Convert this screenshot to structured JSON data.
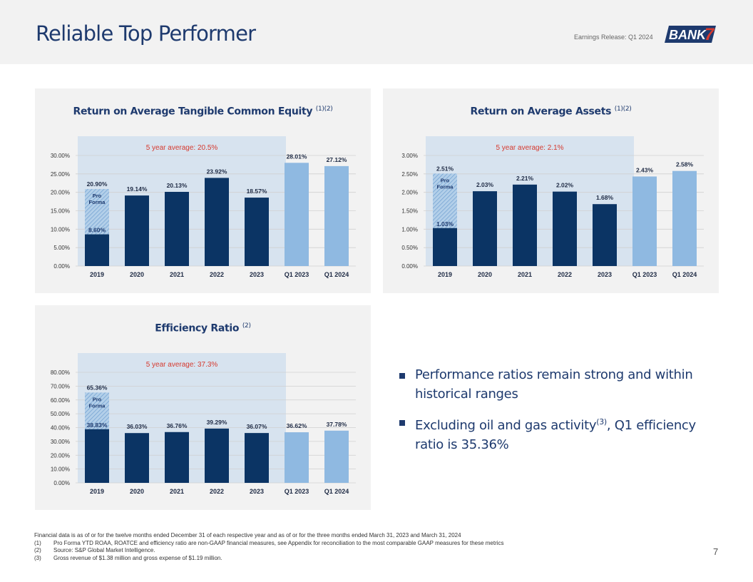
{
  "header": {
    "title": "Reliable Top Performer",
    "release": "Earnings Release: Q1 2024",
    "logo_text": "BANK",
    "logo_number": "7"
  },
  "colors": {
    "dark_bar": "#0b3464",
    "light_bar": "#8fb9e1",
    "avg_band": "#d7e3ef",
    "avg_text": "#d63a2f",
    "brand_navy": "#1e3a6e"
  },
  "chart_data": [
    {
      "type": "bar",
      "title": "Return on Average Tangible Common Equity",
      "title_notes": "(1)(2)",
      "categories": [
        "2019",
        "2020",
        "2021",
        "2022",
        "2023",
        "Q1 2023",
        "Q1 2024"
      ],
      "values": [
        8.6,
        19.14,
        20.13,
        23.92,
        18.57,
        28.01,
        27.12
      ],
      "labels": [
        "8.60%",
        "19.14%",
        "20.13%",
        "23.92%",
        "18.57%",
        "28.01%",
        "27.12%"
      ],
      "pro_forma": {
        "index": 0,
        "value": 20.9,
        "label": "20.90%",
        "text": "Pro Forma"
      },
      "average_label": "5 year average: 20.5%",
      "yticks": [
        0,
        5,
        10,
        15,
        20,
        25,
        30
      ],
      "ytick_labels": [
        "0.00%",
        "5.00%",
        "10.00%",
        "15.00%",
        "20.00%",
        "25.00%",
        "30.00%"
      ],
      "ylim": [
        0,
        30
      ],
      "series_style": [
        "dark",
        "dark",
        "dark",
        "dark",
        "dark",
        "light",
        "light"
      ]
    },
    {
      "type": "bar",
      "title": "Return on Average Assets",
      "title_notes": "(1)(2)",
      "categories": [
        "2019",
        "2020",
        "2021",
        "2022",
        "2023",
        "Q1 2023",
        "Q1 2024"
      ],
      "values": [
        1.03,
        2.03,
        2.21,
        2.02,
        1.68,
        2.43,
        2.58
      ],
      "labels": [
        "1.03%",
        "2.03%",
        "2.21%",
        "2.02%",
        "1.68%",
        "2.43%",
        "2.58%"
      ],
      "pro_forma": {
        "index": 0,
        "value": 2.51,
        "label": "2.51%",
        "text": "Pro Forma"
      },
      "average_label": "5 year average: 2.1%",
      "yticks": [
        0,
        0.5,
        1,
        1.5,
        2,
        2.5,
        3
      ],
      "ytick_labels": [
        "0.00%",
        "0.50%",
        "1.00%",
        "1.50%",
        "2.00%",
        "2.50%",
        "3.00%"
      ],
      "ylim": [
        0,
        3
      ],
      "series_style": [
        "dark",
        "dark",
        "dark",
        "dark",
        "dark",
        "light",
        "light"
      ]
    },
    {
      "type": "bar",
      "title": "Efficiency Ratio",
      "title_notes": "(2)",
      "categories": [
        "2019",
        "2020",
        "2021",
        "2022",
        "2023",
        "Q1 2023",
        "Q1 2024"
      ],
      "values": [
        38.83,
        36.03,
        36.76,
        39.29,
        36.07,
        36.62,
        37.78
      ],
      "labels": [
        "38.83%",
        "36.03%",
        "36.76%",
        "39.29%",
        "36.07%",
        "36.62%",
        "37.78%"
      ],
      "pro_forma": {
        "index": 0,
        "value": 65.36,
        "label": "65.36%",
        "text": "Pro Forma"
      },
      "average_label": "5 year average: 37.3%",
      "yticks": [
        0,
        10,
        20,
        30,
        40,
        50,
        60,
        70,
        80
      ],
      "ytick_labels": [
        "0.00%",
        "10.00%",
        "20.00%",
        "30.00%",
        "40.00%",
        "50.00%",
        "60.00%",
        "70.00%",
        "80.00%"
      ],
      "ylim": [
        0,
        80
      ],
      "series_style": [
        "dark",
        "dark",
        "dark",
        "dark",
        "dark",
        "light",
        "light"
      ]
    }
  ],
  "bullets": [
    {
      "text": "Performance ratios remain strong and within historical ranges"
    },
    {
      "text_before": "Excluding oil and gas activity",
      "sup": "(3)",
      "text_after": ", Q1 efficiency ratio is 35.36%"
    }
  ],
  "footnotes": {
    "intro": "Financial data is as of or for the twelve months ended December 31 of each respective year and as of or for the three months ended March 31, 2023 and March 31, 2024",
    "items": [
      {
        "num": "(1)",
        "text": "Pro Forma YTD ROAA, ROATCE and efficiency ratio are non-GAAP financial measures, see Appendix for reconciliation to the most comparable GAAP measures for these metrics"
      },
      {
        "num": "(2)",
        "text": "Source: S&P Global Market Intelligence."
      },
      {
        "num": "(3)",
        "text": "Gross revenue of $1.38 million and gross expense of $1.19 million."
      }
    ]
  },
  "page_number": "7"
}
